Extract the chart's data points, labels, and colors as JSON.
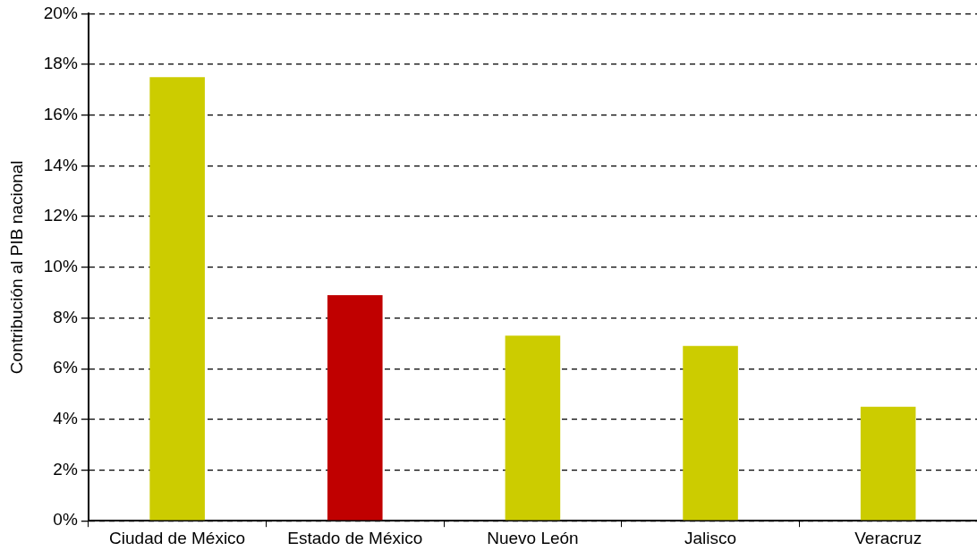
{
  "chart_data": {
    "type": "bar",
    "ylabel": "Contribución al PIB nacional",
    "categories": [
      "Ciudad de México",
      "Estado de México",
      "Nuevo León",
      "Jalisco",
      "Veracruz"
    ],
    "values": [
      17.5,
      8.9,
      7.3,
      6.9,
      4.5
    ],
    "colors": [
      "#cccc00",
      "#c00000",
      "#cccc00",
      "#cccc00",
      "#cccc00"
    ],
    "ylim": [
      0,
      20
    ],
    "yticks": [
      {
        "value": 0,
        "label": "0%"
      },
      {
        "value": 2,
        "label": "2%"
      },
      {
        "value": 4,
        "label": "4%"
      },
      {
        "value": 6,
        "label": "6%"
      },
      {
        "value": 8,
        "label": "8%"
      },
      {
        "value": 10,
        "label": "10%"
      },
      {
        "value": 12,
        "label": "12%"
      },
      {
        "value": 14,
        "label": "14%"
      },
      {
        "value": 16,
        "label": "16%"
      },
      {
        "value": 18,
        "label": "18%"
      },
      {
        "value": 20,
        "label": "20%"
      }
    ],
    "grid": "y",
    "legend": false
  }
}
